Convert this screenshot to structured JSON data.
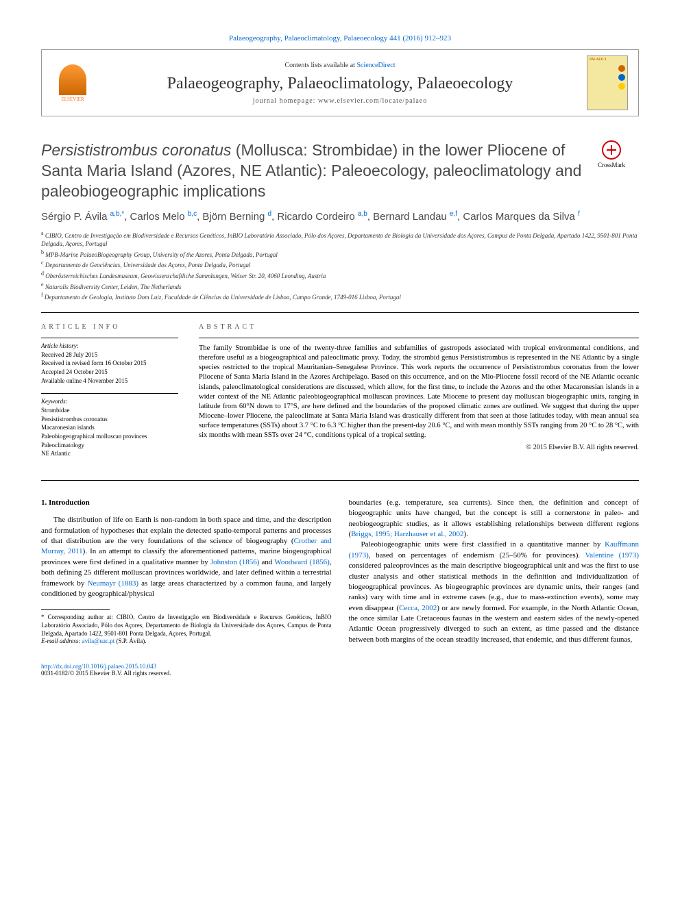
{
  "top_citation": "Palaeogeography, Palaeoclimatology, Palaeoecology 441 (2016) 912–923",
  "header": {
    "contents_prefix": "Contents lists available at ",
    "contents_link": "ScienceDirect",
    "journal_name": "Palaeogeography, Palaeoclimatology, Palaeoecology",
    "homepage_prefix": "journal homepage: ",
    "homepage": "www.elsevier.com/locate/palaeo",
    "elsevier_label": "ELSEVIER",
    "cover_label": "PALAEO 3"
  },
  "crossmark_label": "CrossMark",
  "title": "Persististrombus coronatus (Mollusca: Strombidae) in the lower Pliocene of Santa Maria Island (Azores, NE Atlantic): Paleoecology, paleoclimatology and paleobiogeographic implications",
  "authors_html": "Sérgio P. Ávila <sup>a,b,*</sup>, Carlos Melo <sup>b,c</sup>, Björn Berning <sup>d</sup>, Ricardo Cordeiro <sup>a,b</sup>, Bernard Landau <sup>e,f</sup>, Carlos Marques da Silva <sup>f</sup>",
  "affiliations": [
    "a CIBIO, Centro de Investigação em Biodiversidade e Recursos Genéticos, InBIO Laboratório Associado, Pólo dos Açores, Departamento de Biologia da Universidade dos Açores, Campus de Ponta Delgada, Apartado 1422, 9501-801 Ponta Delgada, Açores, Portugal",
    "b MPB-Marine PalaeoBiogeography Group, University of the Azores, Ponta Delgada, Portugal",
    "c Departamento de Geociências, Universidade dos Açores, Ponta Delgada, Portugal",
    "d Oberösterreichisches Landesmuseum, Geowissenschaftliche Sammlungen, Welser Str. 20, 4060 Leonding, Austria",
    "e Naturalis Biodiversity Center, Leiden, The Netherlands",
    "f Departamento de Geologia, Instituto Dom Luiz, Faculdade de Ciências da Universidade de Lisboa, Campo Grande, 1749-016 Lisboa, Portugal"
  ],
  "article_info": {
    "header": "ARTICLE INFO",
    "history_label": "Article history:",
    "history": "Received 28 July 2015\nReceived in revised form 16 October 2015\nAccepted 24 October 2015\nAvailable online 4 November 2015",
    "keywords_label": "Keywords:",
    "keywords": "Strombidae\nPersististrombus coronatus\nMacaronesian islands\nPaleobiogeographical molluscan provinces\nPaleoclimatology\nNE Atlantic"
  },
  "abstract": {
    "header": "ABSTRACT",
    "text": "The family Strombidae is one of the twenty-three families and subfamilies of gastropods associated with tropical environmental conditions, and therefore useful as a biogeographical and paleoclimatic proxy. Today, the strombid genus Persististrombus is represented in the NE Atlantic by a single species restricted to the tropical Mauritanian–Senegalese Province. This work reports the occurrence of Persististrombus coronatus from the lower Pliocene of Santa Maria Island in the Azores Archipelago. Based on this occurrence, and on the Mio-Pliocene fossil record of the NE Atlantic oceanic islands, paleoclimatological considerations are discussed, which allow, for the first time, to include the Azores and the other Macaronesian islands in a wider context of the NE Atlantic paleobiogeographical molluscan provinces. Late Miocene to present day molluscan biogeographic units, ranging in latitude from 60°N down to 17°S, are here defined and the boundaries of the proposed climatic zones are outlined. We suggest that during the upper Miocene–lower Pliocene, the paleoclimate at Santa Maria Island was drastically different from that seen at those latitudes today, with mean annual sea surface temperatures (SSTs) about 3.7 °C to 6.3 °C higher than the present-day 20.6 °C, and with mean monthly SSTs ranging from 20 °C to 28 °C, with six months with mean SSTs over 24 °C, conditions typical of a tropical setting.",
    "copyright": "© 2015 Elsevier B.V. All rights reserved."
  },
  "section1": {
    "heading": "1. Introduction",
    "col1_p1_pre": "The distribution of life on Earth is non-random in both space and time, and the description and formulation of hypotheses that explain the detected spatio-temporal patterns and processes of that distribution are the very foundations of the science of biogeography (",
    "ref1": "Crother and Murray, 2011",
    "col1_p1_mid1": "). In an attempt to classify the aforementioned patterns, marine biogeographical provinces were first defined in a qualitative manner by ",
    "ref2": "Johnston (1856)",
    "col1_p1_mid2": " and ",
    "ref3": "Woodward (1856)",
    "col1_p1_mid3": ", both defining 25 different molluscan provinces worldwide, and later defined within a terrestrial framework by ",
    "ref4": "Neumayr (1883)",
    "col1_p1_post": " as large areas characterized by a common fauna, and largely conditioned by geographical/physical",
    "col2_p1_pre": "boundaries (e.g. temperature, sea currents). Since then, the definition and concept of biogeographic units have changed, but the concept is still a cornerstone in paleo- and neobiogeographic studies, as it allows establishing relationships between different regions (",
    "ref5": "Briggs, 1995; Harzhauser et al., 2002",
    "col2_p1_post": ").",
    "col2_p2_pre": "Paleobiogeographic units were first classified in a quantitative manner by ",
    "ref6": "Kauffmann (1973)",
    "col2_p2_mid1": ", based on percentages of endemism (25–50% for provinces). ",
    "ref7": "Valentine (1973)",
    "col2_p2_mid2": " considered paleoprovinces as the main descriptive biogeographical unit and was the first to use cluster analysis and other statistical methods in the definition and individualization of biogeographical provinces. As biogeographic provinces are dynamic units, their ranges (and ranks) vary with time and in extreme cases (e.g., due to mass-extinction events), some may even disappear (",
    "ref8": "Cecca, 2002",
    "col2_p2_post": ") or are newly formed. For example, in the North Atlantic Ocean, the once similar Late Cretaceous faunas in the western and eastern sides of the newly-opened Atlantic Ocean progressively diverged to such an extent, as time passed and the distance between both margins of the ocean steadily increased, that endemic, and thus different faunas,"
  },
  "footnote": {
    "corresponding": "* Corresponding author at: CIBIO, Centro de Investigação em Biodiversidade e Recursos Genéticos, InBIO Laboratório Associado, Pólo dos Açores, Departamento de Biologia da Universidade dos Açores, Campus de Ponta Delgada, Apartado 1422, 9501-801 Ponta Delgada, Açores, Portugal.",
    "email_label": "E-mail address: ",
    "email": "avila@uac.pt",
    "email_person": " (S.P. Ávila)."
  },
  "footer": {
    "doi": "http://dx.doi.org/10.1016/j.palaeo.2015.10.043",
    "issn": "0031-0182/© 2015 Elsevier B.V. All rights reserved."
  },
  "colors": {
    "link": "#0066cc",
    "elsevier_orange": "#ff6600",
    "text": "#000000",
    "gray_text": "#4a4a4a"
  }
}
